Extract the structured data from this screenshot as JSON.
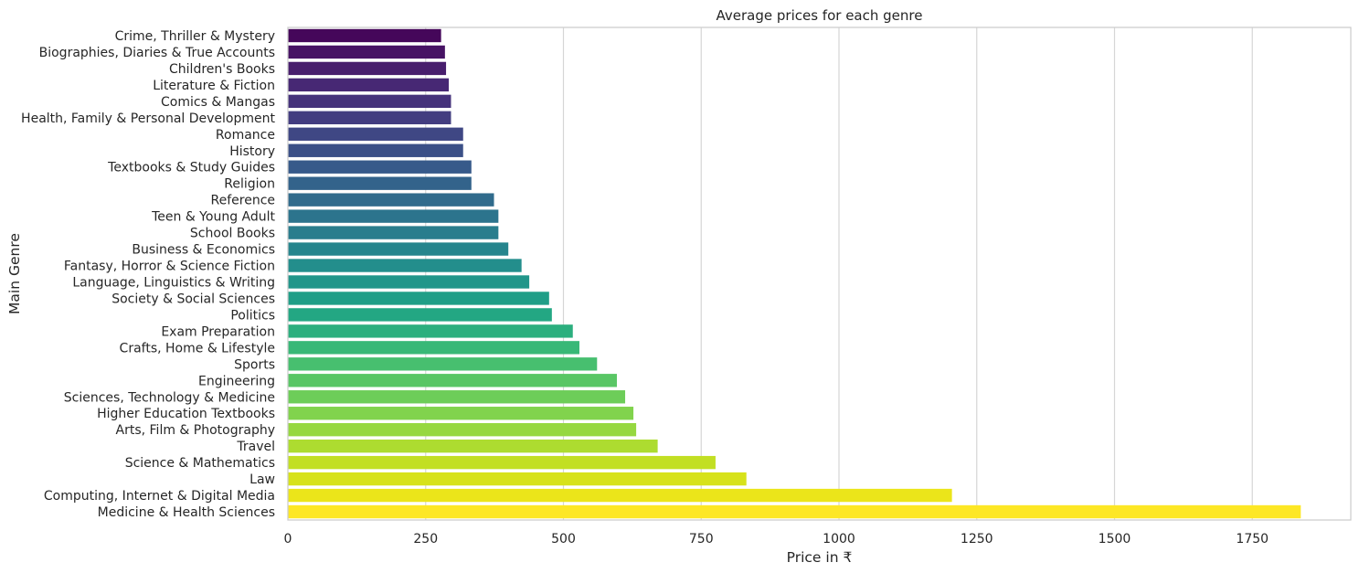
{
  "chart_data": {
    "type": "bar",
    "orientation": "horizontal",
    "title": "Average prices for each genre",
    "xlabel": "Price in ₹",
    "ylabel": "Main Genre",
    "xlim": [
      0,
      1920
    ],
    "xticks": [
      "0",
      "250",
      "500",
      "750",
      "1000",
      "1250",
      "1500",
      "1750"
    ],
    "xtick_values": [
      0,
      250,
      500,
      750,
      1000,
      1250,
      1500,
      1750
    ],
    "grid": "vertical",
    "palette": "viridis",
    "categories": [
      "Crime, Thriller & Mystery",
      "Biographies, Diaries & True Accounts",
      "Children's Books",
      "Literature & Fiction",
      "Comics & Mangas",
      "Health, Family & Personal Development",
      "Romance",
      "History",
      "Textbooks & Study Guides",
      "Religion",
      "Reference",
      "Teen & Young Adult",
      "School Books",
      "Business & Economics",
      "Fantasy, Horror & Science Fiction",
      "Language, Linguistics & Writing",
      "Society & Social Sciences",
      "Politics",
      "Exam Preparation",
      "Crafts, Home & Lifestyle",
      "Sports",
      "Engineering",
      "Sciences, Technology & Medicine",
      "Higher Education Textbooks",
      "Arts, Film & Photography",
      "Travel",
      "Science & Mathematics",
      "Law",
      "Computing, Internet & Digital Media",
      "Medicine & Health Sciences"
    ],
    "values": [
      278,
      285,
      287,
      292,
      296,
      296,
      318,
      318,
      333,
      333,
      374,
      382,
      382,
      400,
      424,
      438,
      474,
      479,
      517,
      529,
      561,
      597,
      612,
      627,
      632,
      671,
      776,
      832,
      1205,
      1838
    ],
    "colors": [
      "#45075a",
      "#471364",
      "#481e6d",
      "#472874",
      "#45327b",
      "#433d80",
      "#3f4784",
      "#3b5087",
      "#375a8a",
      "#33638b",
      "#306b8c",
      "#2c748d",
      "#297d8d",
      "#26858d",
      "#238e8c",
      "#21968a",
      "#209e87",
      "#23a783",
      "#2baf7e",
      "#38b877",
      "#47bf6f",
      "#59c665",
      "#6dcd59",
      "#81d34d",
      "#96d840",
      "#addc30",
      "#c2df23",
      "#d7e21a",
      "#ebe51a",
      "#fde725"
    ]
  }
}
